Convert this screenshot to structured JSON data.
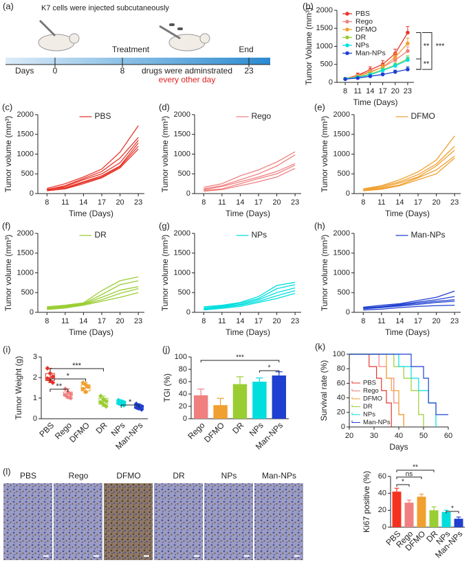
{
  "schematic": {
    "panel": "(a)",
    "injection": "K7 cells were injected subcutaneously",
    "treatment": "Treatment",
    "end": "End",
    "days": "Days",
    "day_ticks": [
      "0",
      "8",
      "23"
    ],
    "drugs": "drugs were adminstrated",
    "schedule": "every other day"
  },
  "micrographs": {
    "panel": "(l)",
    "titles": [
      "PBS",
      "Rego",
      "DFMO",
      "DR",
      "NPs",
      "Man-NPs"
    ]
  },
  "chart_data": [
    {
      "type": "line",
      "panel": "(b)",
      "x_label": "Time (Days)",
      "y_label": "Tumor Volume (mm³)",
      "x": [
        8,
        11,
        14,
        17,
        20,
        23
      ],
      "xlim": [
        6,
        24.5
      ],
      "xticks": [
        8,
        11,
        14,
        17,
        20,
        23
      ],
      "ylim": [
        0,
        2000
      ],
      "yticks": [
        0,
        500,
        1000,
        1500,
        2000
      ],
      "legend": "upper left",
      "markers": true,
      "series": [
        {
          "name": "PBS",
          "color": "#e8352a",
          "values": [
            100,
            200,
            350,
            500,
            800,
            1380
          ],
          "errors": [
            20,
            60,
            80,
            100,
            120,
            170
          ]
        },
        {
          "name": "Rego",
          "color": "#f08080",
          "values": [
            100,
            180,
            300,
            420,
            620,
            870
          ],
          "errors": [
            20,
            40,
            60,
            80,
            100,
            120
          ]
        },
        {
          "name": "DFMO",
          "color": "#f0a030",
          "values": [
            100,
            170,
            280,
            420,
            700,
            1080
          ],
          "errors": [
            20,
            40,
            60,
            80,
            110,
            150
          ]
        },
        {
          "name": "DR",
          "color": "#9acd32",
          "values": [
            100,
            150,
            230,
            350,
            480,
            650
          ],
          "errors": [
            20,
            30,
            40,
            50,
            70,
            90
          ]
        },
        {
          "name": "NPs",
          "color": "#00dede",
          "values": [
            100,
            140,
            210,
            330,
            460,
            620
          ],
          "errors": [
            20,
            30,
            40,
            50,
            60,
            80
          ]
        },
        {
          "name": "Man-NPs",
          "color": "#1f3fd0",
          "values": [
            90,
            120,
            170,
            220,
            290,
            360
          ],
          "errors": [
            15,
            20,
            30,
            40,
            50,
            70
          ]
        }
      ],
      "annotations": [
        "**",
        "***",
        "**"
      ]
    },
    {
      "type": "line",
      "panel": "(c)",
      "label": "PBS",
      "color": "#e8352a",
      "x_label": "Time (Days)",
      "y_label": "Tumor volume (mm³)",
      "x": [
        8,
        11,
        14,
        17,
        20,
        23
      ],
      "xlim": [
        6.5,
        24
      ],
      "xticks": [
        8,
        11,
        14,
        17,
        20,
        23
      ],
      "ylim": [
        0,
        2000
      ],
      "yticks": [
        0,
        500,
        1000,
        1500,
        2000
      ],
      "series": [
        {
          "values": [
            130,
            250,
            420,
            620,
            1050,
            1720
          ]
        },
        {
          "values": [
            100,
            200,
            380,
            560,
            900,
            1420
          ]
        },
        {
          "values": [
            90,
            180,
            350,
            500,
            780,
            1350
          ]
        },
        {
          "values": [
            110,
            150,
            300,
            450,
            700,
            1280
          ]
        },
        {
          "values": [
            80,
            130,
            280,
            420,
            680,
            1200
          ]
        },
        {
          "values": [
            70,
            120,
            250,
            400,
            650,
            1130
          ]
        }
      ]
    },
    {
      "type": "line",
      "panel": "(d)",
      "label": "Rego",
      "color": "#f08080",
      "x_label": "Time (Days)",
      "y_label": "Tumor volume (mm³)",
      "x": [
        8,
        11,
        14,
        17,
        20,
        23
      ],
      "xlim": [
        6.5,
        24
      ],
      "xticks": [
        8,
        11,
        14,
        17,
        20,
        23
      ],
      "ylim": [
        0,
        2000
      ],
      "yticks": [
        0,
        500,
        1000,
        1500,
        2000
      ],
      "series": [
        {
          "values": [
            160,
            250,
            450,
            600,
            800,
            1060
          ]
        },
        {
          "values": [
            120,
            200,
            350,
            500,
            700,
            980
          ]
        },
        {
          "values": [
            100,
            180,
            300,
            420,
            560,
            760
          ]
        },
        {
          "values": [
            80,
            120,
            250,
            380,
            500,
            720
          ]
        },
        {
          "values": [
            60,
            100,
            200,
            300,
            420,
            640
          ]
        }
      ]
    },
    {
      "type": "line",
      "panel": "(e)",
      "label": "DFMO",
      "color": "#f0a030",
      "x_label": "Time (Days)",
      "y_label": "Tumor volume (mm³)",
      "x": [
        8,
        11,
        14,
        17,
        20,
        23
      ],
      "xlim": [
        6.5,
        24
      ],
      "xticks": [
        8,
        11,
        14,
        17,
        20,
        23
      ],
      "ylim": [
        0,
        2000
      ],
      "yticks": [
        0,
        500,
        1000,
        1500,
        2000
      ],
      "series": [
        {
          "values": [
            120,
            200,
            350,
            550,
            850,
            1460
          ]
        },
        {
          "values": [
            100,
            180,
            300,
            480,
            750,
            1200
          ]
        },
        {
          "values": [
            100,
            150,
            270,
            420,
            700,
            1100
          ]
        },
        {
          "values": [
            80,
            130,
            220,
            400,
            600,
            950
          ]
        },
        {
          "values": [
            70,
            110,
            200,
            350,
            500,
            900
          ]
        }
      ]
    },
    {
      "type": "line",
      "panel": "(f)",
      "label": "DR",
      "color": "#9acd32",
      "x_label": "Time (Days)",
      "y_label": "Tumor volume (mm³)",
      "x": [
        8,
        11,
        14,
        17,
        20,
        23
      ],
      "xlim": [
        6.5,
        24
      ],
      "xticks": [
        8,
        11,
        14,
        17,
        20,
        23
      ],
      "ylim": [
        0,
        2000
      ],
      "yticks": [
        0,
        500,
        1000,
        1500,
        2000
      ],
      "series": [
        {
          "values": [
            140,
            180,
            240,
            550,
            800,
            900
          ]
        },
        {
          "values": [
            120,
            160,
            220,
            450,
            700,
            800
          ]
        },
        {
          "values": [
            100,
            150,
            210,
            380,
            560,
            650
          ]
        },
        {
          "values": [
            90,
            130,
            200,
            320,
            480,
            600
          ]
        },
        {
          "values": [
            70,
            110,
            180,
            280,
            380,
            500
          ]
        }
      ]
    },
    {
      "type": "line",
      "panel": "(g)",
      "label": "NPs",
      "color": "#00dede",
      "x_label": "Time (Days)",
      "y_label": "Tumor volume (mm³)",
      "x": [
        8,
        11,
        14,
        17,
        20,
        23
      ],
      "xlim": [
        6.5,
        24
      ],
      "xticks": [
        8,
        11,
        14,
        17,
        20,
        23
      ],
      "ylim": [
        0,
        2000
      ],
      "yticks": [
        0,
        500,
        1000,
        1500,
        2000
      ],
      "series": [
        {
          "values": [
            140,
            180,
            250,
            400,
            680,
            760
          ]
        },
        {
          "values": [
            110,
            160,
            230,
            350,
            600,
            700
          ]
        },
        {
          "values": [
            100,
            140,
            200,
            320,
            500,
            620
          ]
        },
        {
          "values": [
            80,
            120,
            180,
            280,
            420,
            550
          ]
        },
        {
          "values": [
            60,
            100,
            150,
            250,
            350,
            480
          ]
        }
      ]
    },
    {
      "type": "line",
      "panel": "(h)",
      "label": "Man-NPs",
      "color": "#1f3fd0",
      "x_label": "Time (Days)",
      "y_label": "Tumor volume (mm³)",
      "x": [
        8,
        11,
        14,
        17,
        20,
        23
      ],
      "xlim": [
        6.5,
        24
      ],
      "xticks": [
        8,
        11,
        14,
        17,
        20,
        23
      ],
      "ylim": [
        0,
        2000
      ],
      "yticks": [
        0,
        500,
        1000,
        1500,
        2000
      ],
      "series": [
        {
          "values": [
            130,
            180,
            220,
            300,
            380,
            540
          ]
        },
        {
          "values": [
            110,
            150,
            200,
            260,
            320,
            400
          ]
        },
        {
          "values": [
            100,
            130,
            180,
            230,
            280,
            320
          ]
        },
        {
          "values": [
            90,
            120,
            160,
            200,
            250,
            280
          ]
        },
        {
          "values": [
            60,
            80,
            120,
            150,
            170,
            180
          ]
        }
      ]
    },
    {
      "type": "box",
      "panel": "(i)",
      "y_label": "Tumor Weight (g)",
      "categories": [
        "PBS",
        "Rego",
        "DFMO",
        "DR",
        "NPs",
        "Man-NPs"
      ],
      "colors": [
        "#e8352a",
        "#f08080",
        "#f0a030",
        "#9acd32",
        "#00dede",
        "#1f3fd0"
      ],
      "ylim": [
        0,
        3
      ],
      "yticks": [
        0,
        1,
        2,
        3
      ],
      "boxes": [
        {
          "min": 1.75,
          "q1": 1.85,
          "median": 2.0,
          "q3": 2.2,
          "max": 2.45
        },
        {
          "min": 1.0,
          "q1": 1.1,
          "median": 1.2,
          "q3": 1.3,
          "max": 1.45
        },
        {
          "min": 1.25,
          "q1": 1.35,
          "median": 1.5,
          "q3": 1.65,
          "max": 1.75
        },
        {
          "min": 0.6,
          "q1": 0.7,
          "median": 0.85,
          "q3": 1.0,
          "max": 1.1
        },
        {
          "min": 0.65,
          "q1": 0.7,
          "median": 0.78,
          "q3": 0.85,
          "max": 0.9
        },
        {
          "min": 0.45,
          "q1": 0.5,
          "median": 0.58,
          "q3": 0.65,
          "max": 0.72
        }
      ],
      "points": [
        [
          2.45,
          2.2,
          2.05,
          1.95,
          1.85,
          1.75
        ],
        [
          1.45,
          1.3,
          1.2,
          1.15,
          1.05,
          1.0
        ],
        [
          1.75,
          1.65,
          1.55,
          1.45,
          1.3
        ],
        [
          1.1,
          0.95,
          0.85,
          0.8,
          0.7,
          0.6
        ],
        [
          0.9,
          0.85,
          0.8,
          0.75,
          0.7,
          0.65
        ],
        [
          0.72,
          0.65,
          0.6,
          0.55,
          0.5,
          0.45
        ]
      ],
      "annotations": [
        "**",
        "*",
        "***",
        "*"
      ]
    },
    {
      "type": "bar",
      "panel": "(j)",
      "y_label": "TGI (%)",
      "categories": [
        "Rego",
        "DFMO",
        "DR",
        "NPs",
        "Man-NPs"
      ],
      "colors": [
        "#f08080",
        "#f0a030",
        "#9acd32",
        "#00dede",
        "#1f3fd0"
      ],
      "values": [
        38,
        22,
        56,
        60,
        70
      ],
      "errors": [
        10,
        11,
        12,
        6,
        6
      ],
      "ylim": [
        0,
        100
      ],
      "yticks": [
        0,
        20,
        40,
        60,
        80,
        100
      ],
      "annotations": [
        "***",
        "*"
      ]
    },
    {
      "type": "step",
      "panel": "(k)",
      "x_label": "Days",
      "y_label": "Survival rate (%)",
      "xlim": [
        20,
        60
      ],
      "xticks": [
        20,
        30,
        40,
        50,
        60
      ],
      "ylim": [
        0,
        100
      ],
      "yticks": [
        0,
        20,
        40,
        60,
        80,
        100
      ],
      "legend": "lower left",
      "series": [
        {
          "name": "PBS",
          "color": "#e8352a",
          "x": [
            20,
            28,
            31,
            33,
            35,
            37
          ],
          "values": [
            100,
            83,
            67,
            50,
            33,
            0
          ]
        },
        {
          "name": "Rego",
          "color": "#f08080",
          "x": [
            20,
            32,
            35,
            38,
            40,
            42
          ],
          "values": [
            100,
            83,
            67,
            33,
            17,
            0
          ]
        },
        {
          "name": "DFMO",
          "color": "#f0a030",
          "x": [
            20,
            35,
            37,
            40,
            42
          ],
          "values": [
            100,
            67,
            50,
            17,
            0
          ]
        },
        {
          "name": "DR",
          "color": "#9acd32",
          "x": [
            20,
            38,
            42,
            45,
            48,
            50
          ],
          "values": [
            100,
            83,
            67,
            50,
            17,
            0
          ]
        },
        {
          "name": "NPs",
          "color": "#00dede",
          "x": [
            20,
            40,
            45,
            48,
            52,
            55
          ],
          "values": [
            100,
            83,
            67,
            50,
            33,
            0
          ]
        },
        {
          "name": "Man-NPs",
          "color": "#1f3fd0",
          "x": [
            20,
            45,
            50,
            52,
            55,
            60
          ],
          "values": [
            100,
            83,
            67,
            33,
            17,
            17
          ]
        }
      ]
    },
    {
      "type": "bar",
      "y_label": "Ki67 positive (%)",
      "categories": [
        "PBS",
        "Rego",
        "DFMO",
        "DR",
        "NPs",
        "Man-NPs"
      ],
      "colors": [
        "#f5321f",
        "#f08080",
        "#f0a030",
        "#9acd32",
        "#00dede",
        "#1f3fd0"
      ],
      "values": [
        42,
        29,
        36,
        20,
        18,
        10
      ],
      "errors": [
        4,
        3,
        3,
        4,
        2,
        2
      ],
      "ylim": [
        0,
        60
      ],
      "yticks": [
        0,
        20,
        40,
        60
      ],
      "annotations": [
        "*",
        "ns",
        "**",
        "*"
      ]
    }
  ]
}
